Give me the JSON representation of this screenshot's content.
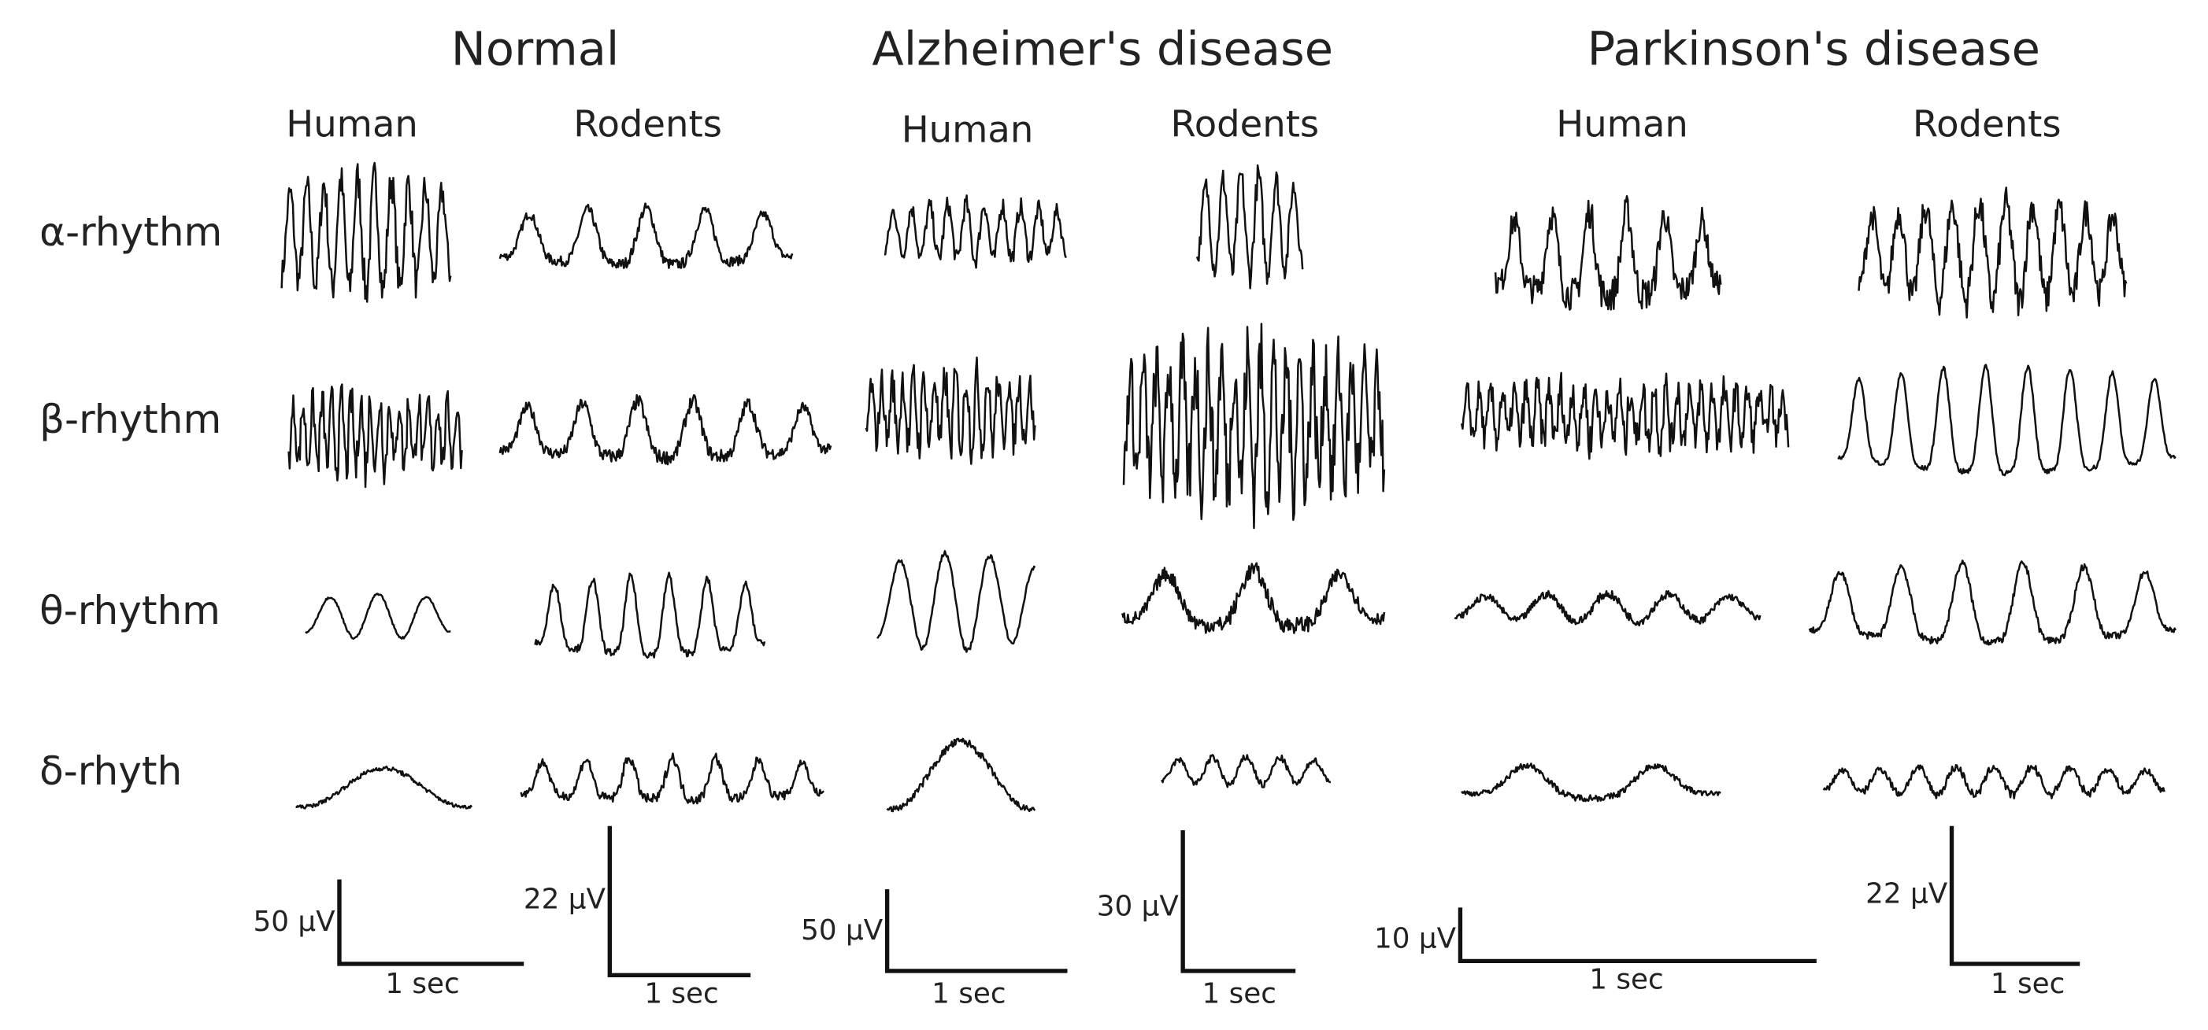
{
  "groups": [
    {
      "title": "Normal",
      "columns": [
        "Human",
        "Rodents"
      ]
    },
    {
      "title": "Alzheimer's disease",
      "columns": [
        "Human",
        "Rodents"
      ]
    },
    {
      "title": "Parkinson's disease",
      "columns": [
        "Human",
        "Rodents"
      ]
    }
  ],
  "rows": [
    "α-rhythm",
    "β-rhythm",
    "θ-rhythm",
    "δ-rhyth"
  ],
  "scale_bars": [
    {
      "amplitude": "50 μV",
      "time": "1 sec"
    },
    {
      "amplitude": "22 μV",
      "time": "1 sec"
    },
    {
      "amplitude": "50 μV",
      "time": "1 sec"
    },
    {
      "amplitude": "30 μV",
      "time": "1 sec"
    },
    {
      "amplitude": "10 μV",
      "time": "1 sec"
    },
    {
      "amplitude": "22 μV",
      "time": "1 sec"
    }
  ]
}
